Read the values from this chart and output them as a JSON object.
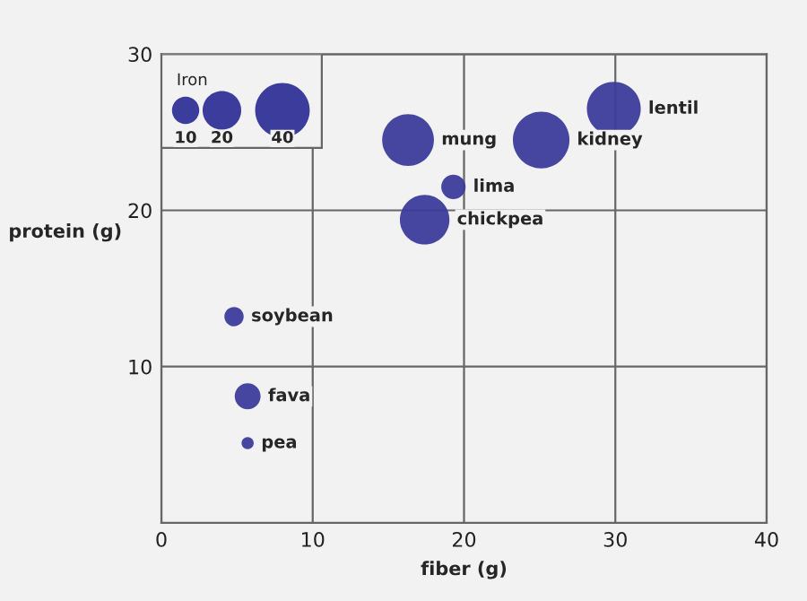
{
  "chart_data": {
    "type": "bubble",
    "xlabel": "fiber (g)",
    "ylabel": "protein (g)",
    "legend_title": "Iron",
    "grid": true,
    "xlim": [
      0,
      40
    ],
    "xticks": [
      0,
      10,
      20,
      30,
      40
    ],
    "ylim": [
      0,
      30
    ],
    "yticks": [
      10,
      20,
      30
    ],
    "size_legend": [
      10,
      20,
      40
    ],
    "series": [
      {
        "color": "#3c3c9c",
        "x": [
          29.9,
          25.1,
          16.3,
          19.3,
          17.4,
          4.8,
          5.7,
          5.7
        ],
        "values": [
          26.5,
          24.5,
          24.5,
          21.5,
          19.4,
          13.2,
          8.1,
          5.1
        ],
        "sizes": [
          39,
          43,
          36,
          8,
          33,
          5,
          9,
          2
        ]
      }
    ],
    "annotations": [
      {
        "text": "lentil",
        "x": 29.9,
        "y": 26.5
      },
      {
        "text": "kidney",
        "x": 25.1,
        "y": 24.5
      },
      {
        "text": "mung",
        "x": 16.3,
        "y": 24.5
      },
      {
        "text": "lima",
        "x": 19.3,
        "y": 21.5
      },
      {
        "text": "chickpea",
        "x": 17.4,
        "y": 19.4
      },
      {
        "text": "soybean",
        "x": 4.8,
        "y": 13.2
      },
      {
        "text": "fava",
        "x": 5.7,
        "y": 8.1
      },
      {
        "text": "pea",
        "x": 5.7,
        "y": 5.1
      }
    ]
  }
}
